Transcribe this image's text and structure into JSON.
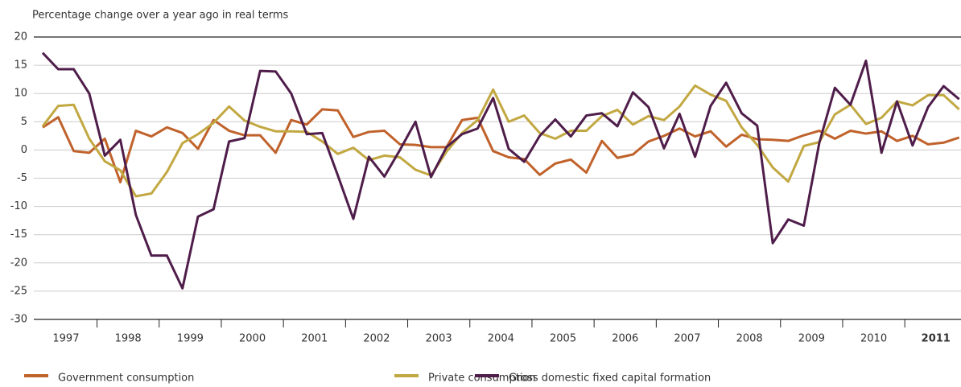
{
  "chart_data": {
    "type": "line",
    "title": "Percentage change over a year ago in real terms",
    "categories": [
      "1997",
      null,
      null,
      null,
      "1998",
      null,
      null,
      null,
      "1999",
      null,
      null,
      null,
      "2000",
      null,
      null,
      null,
      "2001",
      null,
      null,
      null,
      "2002",
      null,
      null,
      null,
      "2003",
      null,
      null,
      null,
      "2004",
      null,
      null,
      null,
      "2005",
      null,
      null,
      null,
      "2006",
      null,
      null,
      null,
      "2007",
      null,
      null,
      null,
      "2008",
      null,
      null,
      null,
      "2009",
      null,
      null,
      null,
      "2010",
      null,
      null,
      null,
      "2011",
      null,
      null,
      null
    ],
    "series": [
      {
        "name": "Government consumption",
        "color": "#c0622b",
        "values": [
          4,
          5.8,
          -0.2,
          -0.5,
          2,
          -5.7,
          3.4,
          2.4,
          4,
          3,
          0.2,
          5.3,
          3.4,
          2.6,
          2.6,
          -0.5,
          5.3,
          4.5,
          7.2,
          7,
          2.3,
          3.2,
          3.4,
          1,
          0.9,
          0.5,
          0.5,
          5.3,
          5.7,
          -0.2,
          -1.3,
          -1.6,
          -4.4,
          -2.4,
          -1.7,
          -4,
          1.6,
          -1.4,
          -0.8,
          1.5,
          2.5,
          3.8,
          2.4,
          3.3,
          0.6,
          2.7,
          1.9,
          1.8,
          1.6,
          2.6,
          3.4,
          2,
          3.4,
          2.9,
          3.3,
          1.6,
          2.5,
          1,
          1.3,
          2.2
        ]
      },
      {
        "name": "Private consumption",
        "color": "#c2a842",
        "values": [
          4.2,
          7.8,
          8,
          2,
          -2,
          -3.6,
          -8.2,
          -7.7,
          -3.9,
          1.2,
          2.8,
          4.8,
          7.7,
          5.2,
          4.1,
          3.3,
          3.3,
          3.2,
          1.5,
          -0.7,
          0.4,
          -1.8,
          -1,
          -1.3,
          -3.5,
          -4.5,
          -0.3,
          3,
          5.3,
          10.7,
          5,
          6.1,
          3,
          2,
          3.4,
          3.4,
          6,
          7.1,
          4.5,
          6,
          5.3,
          7.7,
          11.4,
          9.8,
          8.7,
          4,
          0.9,
          -3.1,
          -5.6,
          0.7,
          1.4,
          6.3,
          8,
          4.6,
          5.7,
          8.6,
          7.9,
          9.7,
          9.7,
          7.2
        ]
      },
      {
        "name": "Gross domestic fixed capital formation",
        "color": "#4f1d4a",
        "values": [
          17.2,
          14.3,
          14.3,
          10,
          -1,
          1.8,
          -11.5,
          -18.7,
          -18.7,
          -24.5,
          -11.8,
          -10.5,
          1.5,
          2.1,
          14,
          13.9,
          10,
          2.8,
          3,
          -4.5,
          -12.2,
          -1.2,
          -4.7,
          0,
          5,
          -4.8,
          0.5,
          2.8,
          3.8,
          9.2,
          0.2,
          -2.1,
          2.5,
          5.4,
          2.4,
          6.1,
          6.5,
          4.2,
          10.2,
          7.6,
          0.3,
          6.4,
          -1.2,
          7.8,
          11.9,
          6.5,
          4.3,
          -16.5,
          -12.3,
          -13.4,
          1.3,
          11,
          8,
          15.8,
          -0.5,
          8.6,
          0.8,
          7.6,
          11.3,
          9
        ]
      }
    ],
    "ylim": [
      -30,
      20
    ],
    "yticks": [
      -30,
      -25,
      -20,
      -15,
      -10,
      -5,
      0,
      5,
      10,
      15,
      20
    ],
    "grid": true,
    "legend": "bottom"
  }
}
